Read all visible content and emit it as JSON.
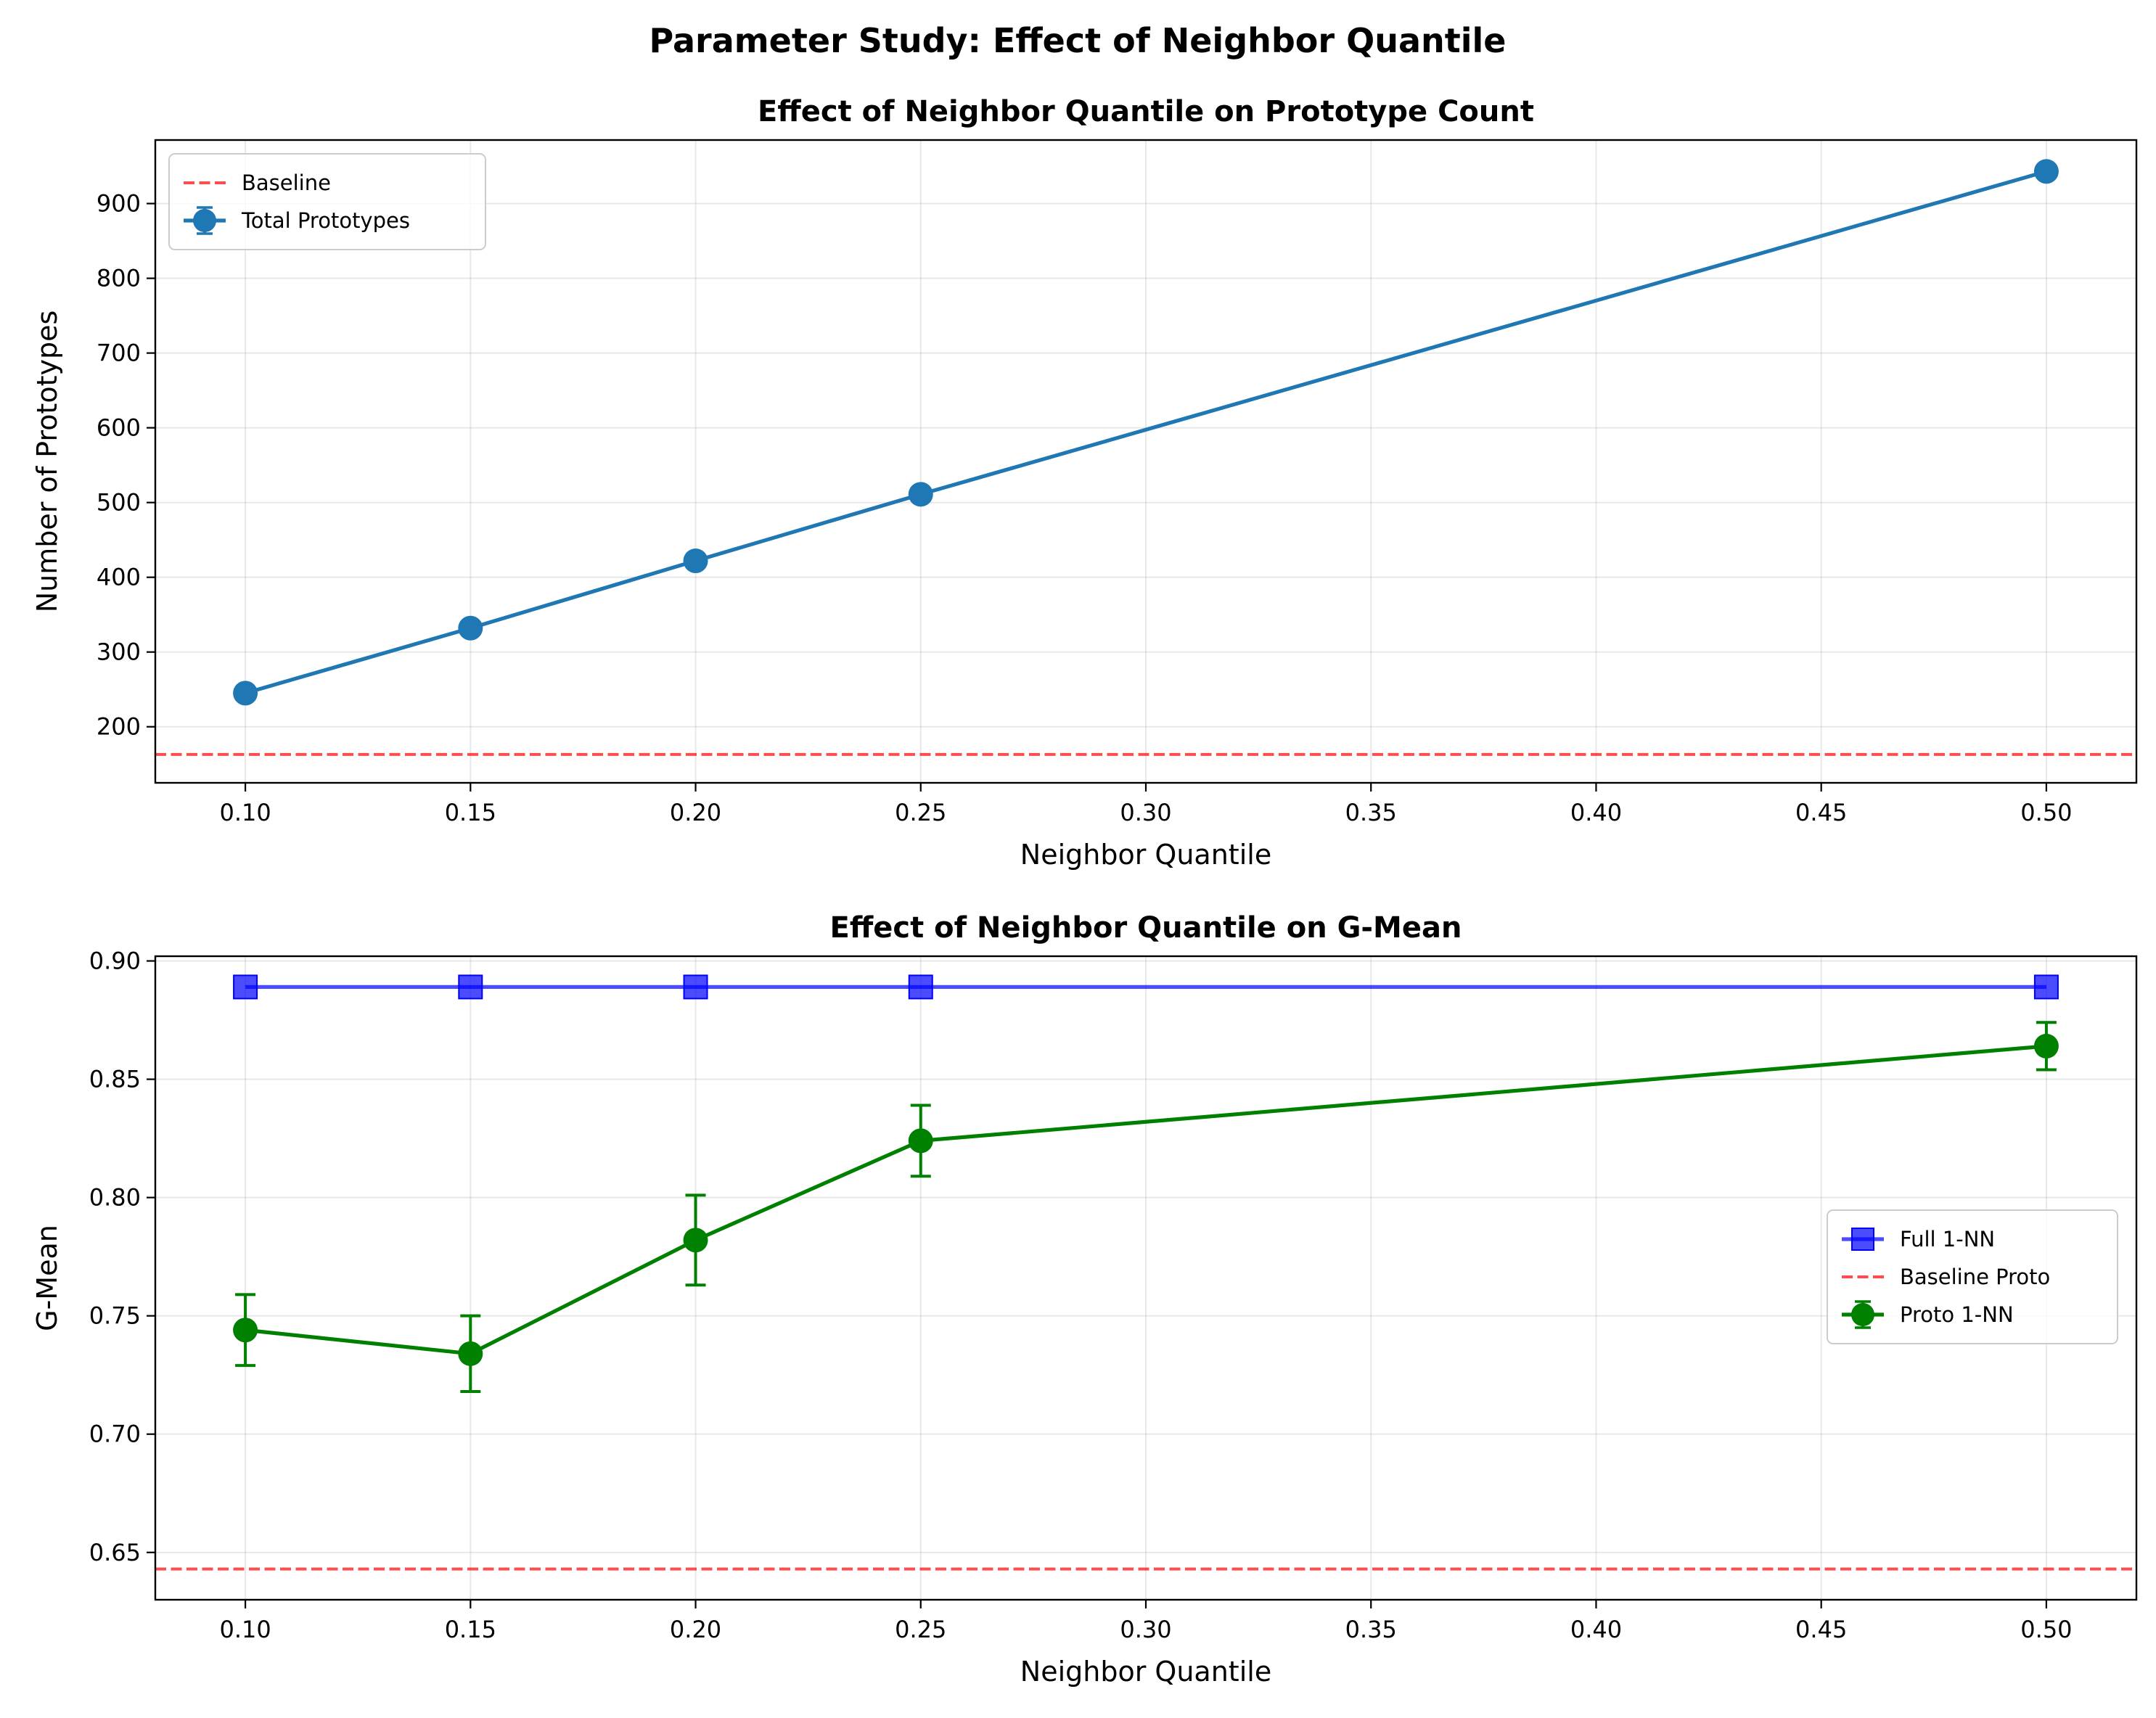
{
  "figure": {
    "suptitle": "Parameter Study: Effect of Neighbor Quantile"
  },
  "chart_data": [
    {
      "type": "line",
      "title": "Effect of Neighbor Quantile on Prototype Count",
      "xlabel": "Neighbor Quantile",
      "ylabel": "Number of Prototypes",
      "xlim": [
        0.08,
        0.52
      ],
      "ylim": [
        125,
        985
      ],
      "xticks": [
        0.1,
        0.15,
        0.2,
        0.25,
        0.3,
        0.35,
        0.4,
        0.45,
        0.5
      ],
      "xtick_labels": [
        "0.10",
        "0.15",
        "0.20",
        "0.25",
        "0.30",
        "0.35",
        "0.40",
        "0.45",
        "0.50"
      ],
      "yticks": [
        200,
        300,
        400,
        500,
        600,
        700,
        800,
        900
      ],
      "ytick_labels": [
        "200",
        "300",
        "400",
        "500",
        "600",
        "700",
        "800",
        "900"
      ],
      "grid": true,
      "legend_position": "upper-left",
      "series": [
        {
          "name": "Total Prototypes",
          "kind": "errorbar-line",
          "marker": "circle",
          "color": "#1f77b4",
          "x": [
            0.1,
            0.15,
            0.2,
            0.25,
            0.5
          ],
          "y": [
            245,
            332,
            422,
            511,
            943
          ],
          "err": [
            3,
            3,
            3,
            3,
            3
          ]
        }
      ],
      "reference_lines": [
        {
          "name": "Baseline",
          "y": 163,
          "color": "#ff0000",
          "style": "dashed"
        }
      ],
      "legend_order": [
        "Baseline",
        "Total Prototypes"
      ]
    },
    {
      "type": "line",
      "title": "Effect of Neighbor Quantile on G-Mean",
      "xlabel": "Neighbor Quantile",
      "ylabel": "G-Mean",
      "xlim": [
        0.08,
        0.52
      ],
      "ylim": [
        0.63,
        0.902
      ],
      "xticks": [
        0.1,
        0.15,
        0.2,
        0.25,
        0.3,
        0.35,
        0.4,
        0.45,
        0.5
      ],
      "xtick_labels": [
        "0.10",
        "0.15",
        "0.20",
        "0.25",
        "0.30",
        "0.35",
        "0.40",
        "0.45",
        "0.50"
      ],
      "yticks": [
        0.65,
        0.7,
        0.75,
        0.8,
        0.85,
        0.9
      ],
      "ytick_labels": [
        "0.65",
        "0.70",
        "0.75",
        "0.80",
        "0.85",
        "0.90"
      ],
      "grid": true,
      "legend_position": "center-right",
      "series": [
        {
          "name": "Full 1-NN",
          "kind": "line",
          "marker": "square",
          "color": "#0000ff",
          "x": [
            0.1,
            0.15,
            0.2,
            0.25,
            0.5
          ],
          "y": [
            0.889,
            0.889,
            0.889,
            0.889,
            0.889
          ]
        },
        {
          "name": "Proto 1-NN",
          "kind": "errorbar-line",
          "marker": "circle",
          "color": "#008000",
          "x": [
            0.1,
            0.15,
            0.2,
            0.25,
            0.5
          ],
          "y": [
            0.744,
            0.734,
            0.782,
            0.824,
            0.864
          ],
          "err": [
            0.015,
            0.016,
            0.019,
            0.015,
            0.01
          ]
        }
      ],
      "reference_lines": [
        {
          "name": "Baseline Proto",
          "y": 0.643,
          "color": "#ff0000",
          "style": "dashed"
        }
      ],
      "legend_order": [
        "Full 1-NN",
        "Baseline Proto",
        "Proto 1-NN"
      ]
    }
  ]
}
